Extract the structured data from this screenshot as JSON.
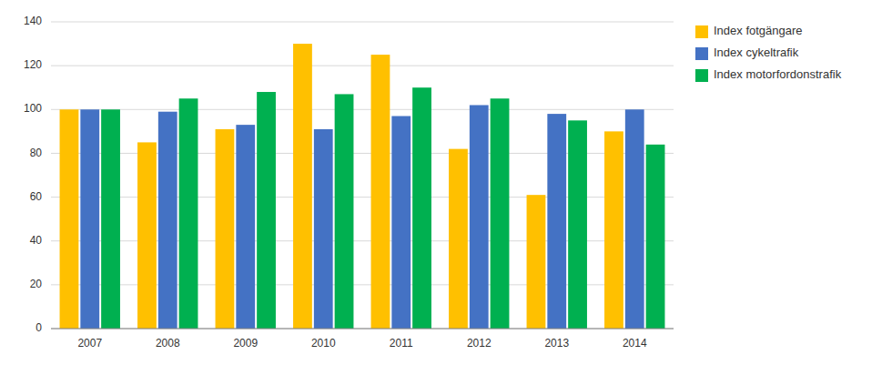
{
  "chart_data": {
    "type": "bar",
    "categories": [
      2007,
      2008,
      2009,
      2010,
      2011,
      2012,
      2013,
      2014
    ],
    "series": [
      {
        "name": "Index fotgängare",
        "color": "#FFC000",
        "values": [
          100,
          85,
          91,
          130,
          125,
          82,
          61,
          90
        ]
      },
      {
        "name": "Index cykeltrafik",
        "color": "#4472C4",
        "values": [
          100,
          99,
          93,
          91,
          97,
          102,
          98,
          100
        ]
      },
      {
        "name": "Index motorfordonstrafik",
        "color": "#00B050",
        "values": [
          100,
          105,
          108,
          107,
          110,
          105,
          95,
          84
        ]
      }
    ],
    "ylim": [
      0,
      140
    ],
    "yticks": [
      0,
      20,
      40,
      60,
      80,
      100,
      120,
      140
    ],
    "grid": true,
    "legend": "upper right"
  }
}
